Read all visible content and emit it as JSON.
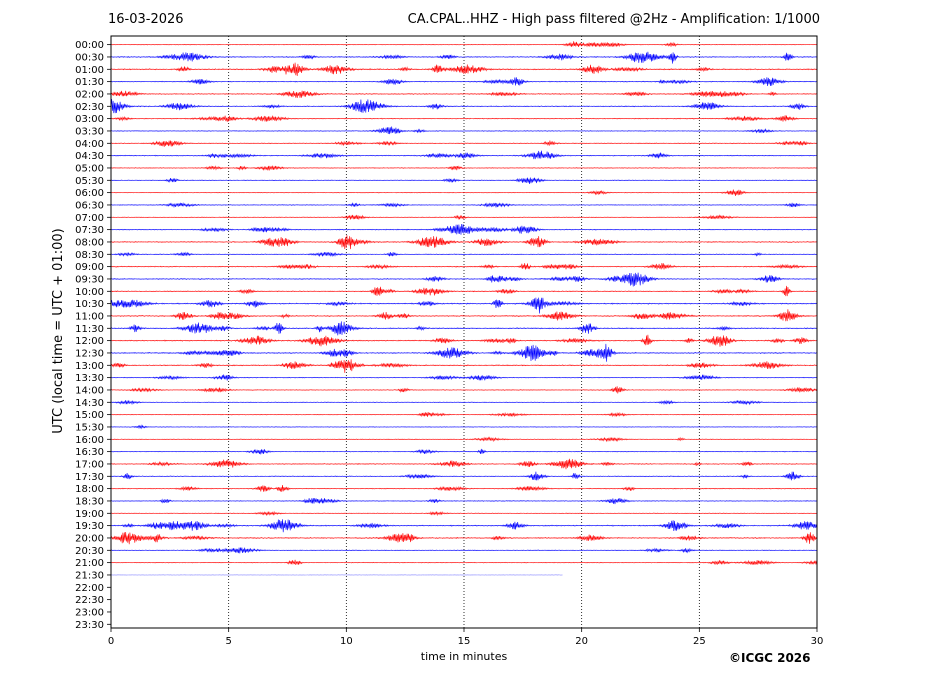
{
  "header": {
    "date": "16-03-2026",
    "title": "CA.CPAL..HHZ - High pass filtered @2Hz - Amplification: 1/1000"
  },
  "footer": {
    "copyright": "©ICGC 2026"
  },
  "colors": {
    "trace_red": "#ff0000",
    "trace_blue": "#0000ff",
    "axis": "#000000",
    "grid": "#000000",
    "background": "#ffffff"
  },
  "chart_data": {
    "type": "line",
    "title": "CA.CPAL..HHZ - High pass filtered @2Hz - Amplification: 1/1000",
    "xlabel": "time in minutes",
    "ylabel": "UTC (local time = UTC + 01:00)",
    "xlim": [
      0,
      30
    ],
    "x_ticks": [
      0,
      5,
      10,
      15,
      20,
      25,
      30
    ],
    "x_tick_labels": [
      "0",
      "5",
      "10",
      "15",
      "20",
      "25",
      "30"
    ],
    "grid": "vertical dotted lines at 5-minute ticks",
    "rows": [
      {
        "label": "00:00",
        "color": "red",
        "end_min": 30,
        "activity": 0.25
      },
      {
        "label": "00:30",
        "color": "blue",
        "end_min": 30,
        "activity": 0.7
      },
      {
        "label": "01:00",
        "color": "red",
        "end_min": 30,
        "activity": 0.95
      },
      {
        "label": "01:30",
        "color": "blue",
        "end_min": 30,
        "activity": 0.5
      },
      {
        "label": "02:00",
        "color": "red",
        "end_min": 30,
        "activity": 0.6
      },
      {
        "label": "02:30",
        "color": "blue",
        "end_min": 30,
        "activity": 0.65
      },
      {
        "label": "03:00",
        "color": "red",
        "end_min": 30,
        "activity": 0.45
      },
      {
        "label": "03:30",
        "color": "blue",
        "end_min": 30,
        "activity": 0.3
      },
      {
        "label": "04:00",
        "color": "red",
        "end_min": 30,
        "activity": 0.4
      },
      {
        "label": "04:30",
        "color": "blue",
        "end_min": 30,
        "activity": 0.6
      },
      {
        "label": "05:00",
        "color": "red",
        "end_min": 30,
        "activity": 0.3
      },
      {
        "label": "05:30",
        "color": "blue",
        "end_min": 30,
        "activity": 0.3
      },
      {
        "label": "06:00",
        "color": "red",
        "end_min": 30,
        "activity": 0.2
      },
      {
        "label": "06:30",
        "color": "blue",
        "end_min": 30,
        "activity": 0.35
      },
      {
        "label": "07:00",
        "color": "red",
        "end_min": 30,
        "activity": 0.2
      },
      {
        "label": "07:30",
        "color": "blue",
        "end_min": 30,
        "activity": 0.55
      },
      {
        "label": "08:00",
        "color": "red",
        "end_min": 30,
        "activity": 0.7
      },
      {
        "label": "08:30",
        "color": "blue",
        "end_min": 30,
        "activity": 0.35
      },
      {
        "label": "09:00",
        "color": "red",
        "end_min": 30,
        "activity": 0.7
      },
      {
        "label": "09:30",
        "color": "blue",
        "end_min": 30,
        "activity": 0.65
      },
      {
        "label": "10:00",
        "color": "red",
        "end_min": 30,
        "activity": 0.6
      },
      {
        "label": "10:30",
        "color": "blue",
        "end_min": 30,
        "activity": 0.85
      },
      {
        "label": "11:00",
        "color": "red",
        "end_min": 30,
        "activity": 0.85
      },
      {
        "label": "11:30",
        "color": "blue",
        "end_min": 30,
        "activity": 0.85
      },
      {
        "label": "12:00",
        "color": "red",
        "end_min": 30,
        "activity": 0.8
      },
      {
        "label": "12:30",
        "color": "blue",
        "end_min": 30,
        "activity": 0.85
      },
      {
        "label": "13:00",
        "color": "red",
        "end_min": 30,
        "activity": 0.7
      },
      {
        "label": "13:30",
        "color": "blue",
        "end_min": 30,
        "activity": 0.35
      },
      {
        "label": "14:00",
        "color": "red",
        "end_min": 30,
        "activity": 0.35
      },
      {
        "label": "14:30",
        "color": "blue",
        "end_min": 30,
        "activity": 0.2
      },
      {
        "label": "15:00",
        "color": "red",
        "end_min": 30,
        "activity": 0.25
      },
      {
        "label": "15:30",
        "color": "blue",
        "end_min": 30,
        "activity": 0.1
      },
      {
        "label": "16:00",
        "color": "red",
        "end_min": 30,
        "activity": 0.2
      },
      {
        "label": "16:30",
        "color": "blue",
        "end_min": 30,
        "activity": 0.25
      },
      {
        "label": "17:00",
        "color": "red",
        "end_min": 30,
        "activity": 0.55
      },
      {
        "label": "17:30",
        "color": "blue",
        "end_min": 30,
        "activity": 0.4
      },
      {
        "label": "18:00",
        "color": "red",
        "end_min": 30,
        "activity": 0.45
      },
      {
        "label": "18:30",
        "color": "blue",
        "end_min": 30,
        "activity": 0.35
      },
      {
        "label": "19:00",
        "color": "red",
        "end_min": 30,
        "activity": 0.15
      },
      {
        "label": "19:30",
        "color": "blue",
        "end_min": 30,
        "activity": 0.8
      },
      {
        "label": "20:00",
        "color": "red",
        "end_min": 30,
        "activity": 0.8
      },
      {
        "label": "20:30",
        "color": "blue",
        "end_min": 30,
        "activity": 0.3
      },
      {
        "label": "21:00",
        "color": "red",
        "end_min": 30,
        "activity": 0.25
      },
      {
        "label": "21:30",
        "color": "blue",
        "end_min": 19.2,
        "activity": 0.0
      },
      {
        "label": "22:00",
        "color": "red",
        "end_min": 0,
        "activity": 0
      },
      {
        "label": "22:30",
        "color": "blue",
        "end_min": 0,
        "activity": 0
      },
      {
        "label": "23:00",
        "color": "red",
        "end_min": 0,
        "activity": 0
      },
      {
        "label": "23:30",
        "color": "blue",
        "end_min": 0,
        "activity": 0
      }
    ]
  }
}
